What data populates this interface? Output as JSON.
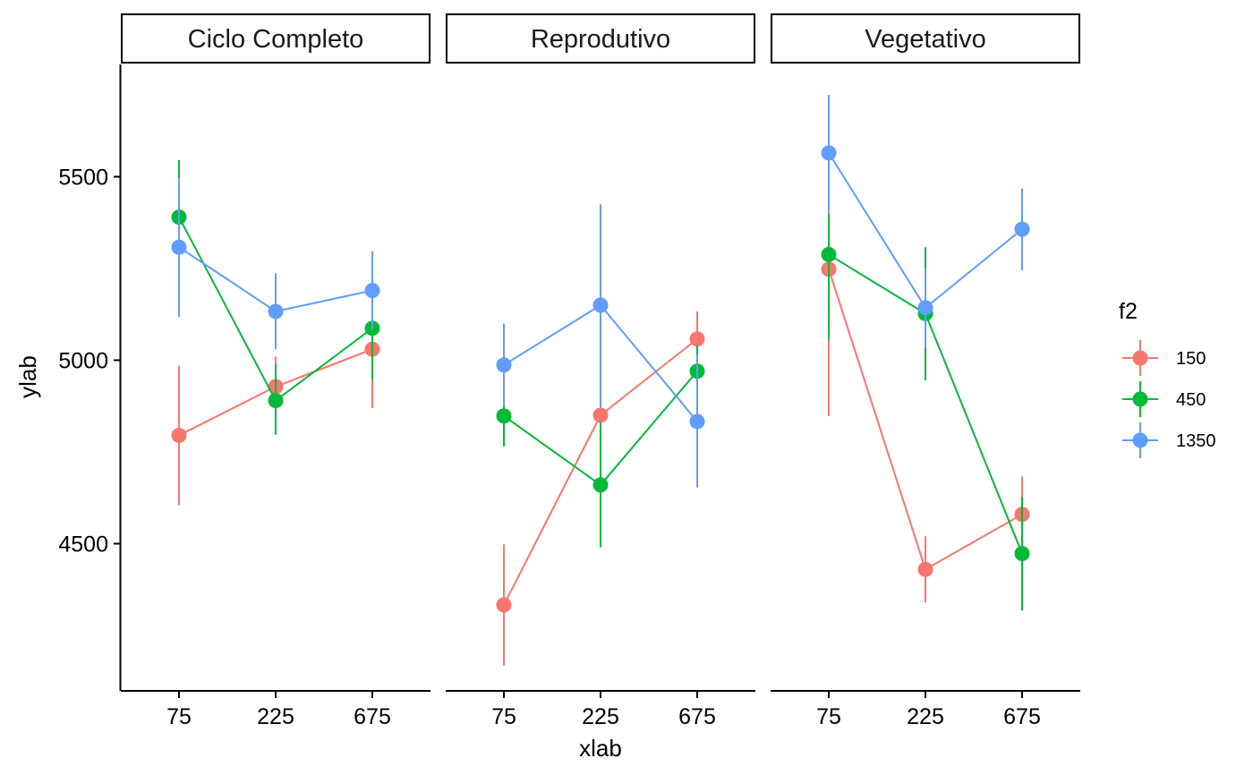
{
  "chart_data": {
    "type": "line",
    "xlabel": "xlab",
    "ylabel": "ylab",
    "x_categories": [
      "75",
      "225",
      "675"
    ],
    "y_ticks": [
      4500,
      5000,
      5500
    ],
    "ylim": [
      4160,
      5800
    ],
    "legend": {
      "title": "f2",
      "placement": "right"
    },
    "colors": {
      "150": "#F8766D",
      "450": "#00BA38",
      "1350": "#619CFF"
    },
    "panels": [
      {
        "title": "Ciclo Completo",
        "series": [
          {
            "name": "150",
            "values": [
              4795,
              4928,
              5030
            ],
            "lower": [
              4605,
              4850,
              4870
            ],
            "upper": [
              4985,
              5010,
              5150
            ]
          },
          {
            "name": "450",
            "values": [
              5390,
              4890,
              5087
            ],
            "lower": [
              5230,
              4797,
              4945
            ],
            "upper": [
              5545,
              4990,
              5230
            ]
          },
          {
            "name": "1350",
            "values": [
              5308,
              5133,
              5190
            ],
            "lower": [
              5118,
              5030,
              5085
            ],
            "upper": [
              5498,
              5237,
              5297
            ]
          }
        ]
      },
      {
        "title": "Reprodutivo",
        "series": [
          {
            "name": "150",
            "values": [
              4333,
              4850,
              5058
            ],
            "lower": [
              4168,
              4700,
              4985
            ],
            "upper": [
              4498,
              5000,
              5133
            ]
          },
          {
            "name": "450",
            "values": [
              4848,
              4660,
              4970
            ],
            "lower": [
              4765,
              4490,
              4900
            ],
            "upper": [
              4930,
              4830,
              5040
            ]
          },
          {
            "name": "1350",
            "values": [
              4987,
              5150,
              4833
            ],
            "lower": [
              4875,
              4875,
              4653
            ],
            "upper": [
              5100,
              5425,
              5013
            ]
          }
        ]
      },
      {
        "title": "Vegetativo",
        "series": [
          {
            "name": "150",
            "values": [
              5248,
              4430,
              4580
            ],
            "lower": [
              4848,
              4340,
              4475
            ],
            "upper": [
              5645,
              4520,
              4683
            ]
          },
          {
            "name": "450",
            "values": [
              5288,
              5127,
              4473
            ],
            "lower": [
              5057,
              4945,
              4318
            ],
            "upper": [
              5398,
              5308,
              4628
            ]
          },
          {
            "name": "1350",
            "values": [
              5565,
              5143,
              5357
            ],
            "lower": [
              5407,
              5033,
              5245
            ],
            "upper": [
              5723,
              5250,
              5468
            ]
          }
        ]
      }
    ]
  }
}
